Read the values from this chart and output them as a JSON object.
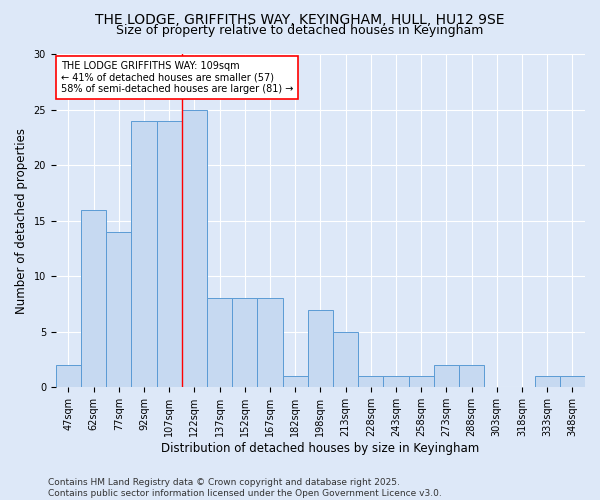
{
  "title_line1": "THE LODGE, GRIFFITHS WAY, KEYINGHAM, HULL, HU12 9SE",
  "title_line2": "Size of property relative to detached houses in Keyingham",
  "xlabel": "Distribution of detached houses by size in Keyingham",
  "ylabel": "Number of detached properties",
  "categories": [
    "47sqm",
    "62sqm",
    "77sqm",
    "92sqm",
    "107sqm",
    "122sqm",
    "137sqm",
    "152sqm",
    "167sqm",
    "182sqm",
    "198sqm",
    "213sqm",
    "228sqm",
    "243sqm",
    "258sqm",
    "273sqm",
    "288sqm",
    "303sqm",
    "318sqm",
    "333sqm",
    "348sqm"
  ],
  "values": [
    2,
    16,
    14,
    24,
    24,
    25,
    8,
    8,
    8,
    1,
    7,
    5,
    1,
    1,
    1,
    2,
    2,
    0,
    0,
    1,
    1
  ],
  "bar_color": "#c6d9f1",
  "bar_edge_color": "#5b9bd5",
  "vline_x_index": 4.5,
  "vline_color": "red",
  "annotation_text": "THE LODGE GRIFFITHS WAY: 109sqm\n← 41% of detached houses are smaller (57)\n58% of semi-detached houses are larger (81) →",
  "annotation_box_color": "white",
  "annotation_box_edge": "red",
  "ylim": [
    0,
    30
  ],
  "yticks": [
    0,
    5,
    10,
    15,
    20,
    25,
    30
  ],
  "footer": "Contains HM Land Registry data © Crown copyright and database right 2025.\nContains public sector information licensed under the Open Government Licence v3.0.",
  "bg_color": "#dde8f8",
  "grid_color": "#ffffff",
  "title_fontsize": 10,
  "subtitle_fontsize": 9,
  "axis_label_fontsize": 8.5,
  "tick_fontsize": 7,
  "annotation_fontsize": 7,
  "footer_fontsize": 6.5
}
